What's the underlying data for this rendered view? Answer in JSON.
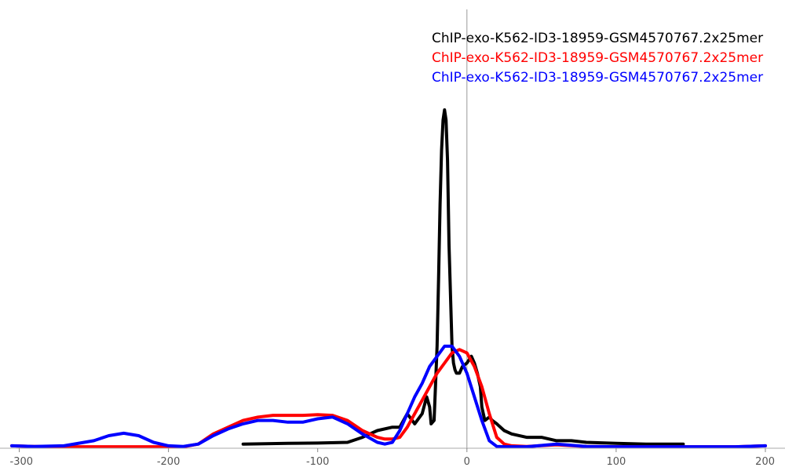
{
  "chart_data": {
    "type": "line",
    "title": "",
    "xlabel": "",
    "ylabel": "",
    "xlim": [
      -305,
      200
    ],
    "ylim": [
      0,
      1
    ],
    "x_ticks": [
      -300,
      -200,
      -100,
      0,
      100,
      200
    ],
    "x_tick_labels": [
      "-300",
      "-200",
      "-100",
      "0",
      "100",
      "200"
    ],
    "y_ticks_shown": false,
    "grid": false,
    "zero_line": true,
    "legend_position": "top-right",
    "series": [
      {
        "name": "ChIP-exo-K562-ID3-18959-GSM4570767.2x25mer",
        "color": "#000000",
        "x": [
          -150,
          -120,
          -100,
          -80,
          -70,
          -60,
          -50,
          -45,
          -40,
          -35,
          -30,
          -27,
          -25,
          -24,
          -22,
          -20,
          -19,
          -18,
          -17,
          -16,
          -15,
          -14,
          -13,
          -12,
          -11,
          -10,
          -9,
          -8,
          -7,
          -6,
          -5,
          -3,
          0,
          3,
          5,
          7,
          9,
          10,
          12,
          15,
          17,
          20,
          25,
          30,
          40,
          50,
          60,
          70,
          80,
          100,
          120,
          145
        ],
        "y": [
          0.01,
          0.012,
          0.013,
          0.015,
          0.03,
          0.05,
          0.06,
          0.06,
          0.1,
          0.07,
          0.1,
          0.15,
          0.12,
          0.07,
          0.08,
          0.3,
          0.5,
          0.72,
          0.88,
          0.97,
          1.0,
          0.97,
          0.85,
          0.6,
          0.45,
          0.3,
          0.25,
          0.23,
          0.22,
          0.22,
          0.22,
          0.24,
          0.25,
          0.27,
          0.25,
          0.22,
          0.18,
          0.12,
          0.08,
          0.09,
          0.08,
          0.07,
          0.05,
          0.04,
          0.03,
          0.03,
          0.02,
          0.02,
          0.015,
          0.012,
          0.01,
          0.01
        ]
      },
      {
        "name": "ChIP-exo-K562-ID3-18959-GSM4570767.2x25mer",
        "color": "#ff0000",
        "x": [
          -305,
          -290,
          -270,
          -250,
          -240,
          -230,
          -220,
          -210,
          -200,
          -190,
          -180,
          -170,
          -160,
          -150,
          -140,
          -130,
          -120,
          -110,
          -100,
          -90,
          -80,
          -70,
          -60,
          -55,
          -50,
          -45,
          -40,
          -35,
          -30,
          -25,
          -20,
          -15,
          -10,
          -5,
          0,
          5,
          10,
          15,
          20,
          25,
          30,
          40,
          60,
          80,
          100,
          120,
          140,
          160,
          180,
          200
        ],
        "y": [
          0.005,
          0.003,
          0.002,
          0.002,
          0.002,
          0.002,
          0.002,
          0.002,
          0.002,
          0.002,
          0.01,
          0.04,
          0.06,
          0.08,
          0.09,
          0.095,
          0.095,
          0.095,
          0.097,
          0.095,
          0.08,
          0.05,
          0.03,
          0.025,
          0.025,
          0.03,
          0.06,
          0.1,
          0.14,
          0.18,
          0.22,
          0.25,
          0.28,
          0.29,
          0.28,
          0.24,
          0.18,
          0.1,
          0.03,
          0.01,
          0.005,
          0.003,
          0.008,
          0.003,
          0.002,
          0.002,
          0.002,
          0.002,
          0.002,
          0.005
        ]
      },
      {
        "name": "ChIP-exo-K562-ID3-18959-GSM4570767.2x25mer",
        "color": "#0000ff",
        "x": [
          -305,
          -290,
          -270,
          -250,
          -240,
          -230,
          -220,
          -210,
          -200,
          -190,
          -180,
          -170,
          -160,
          -150,
          -140,
          -130,
          -120,
          -110,
          -100,
          -90,
          -80,
          -70,
          -60,
          -55,
          -50,
          -45,
          -40,
          -35,
          -30,
          -25,
          -20,
          -15,
          -10,
          -5,
          0,
          5,
          10,
          15,
          20,
          25,
          30,
          40,
          60,
          80,
          100,
          120,
          140,
          160,
          180,
          200
        ],
        "y": [
          0.005,
          0.003,
          0.005,
          0.02,
          0.035,
          0.042,
          0.035,
          0.015,
          0.005,
          0.003,
          0.01,
          0.035,
          0.055,
          0.07,
          0.08,
          0.08,
          0.075,
          0.075,
          0.085,
          0.09,
          0.07,
          0.04,
          0.015,
          0.01,
          0.015,
          0.05,
          0.1,
          0.15,
          0.19,
          0.24,
          0.27,
          0.3,
          0.3,
          0.27,
          0.22,
          0.15,
          0.08,
          0.02,
          0.003,
          0.002,
          0.002,
          0.002,
          0.01,
          0.003,
          0.002,
          0.002,
          0.002,
          0.002,
          0.002,
          0.005
        ]
      }
    ]
  }
}
